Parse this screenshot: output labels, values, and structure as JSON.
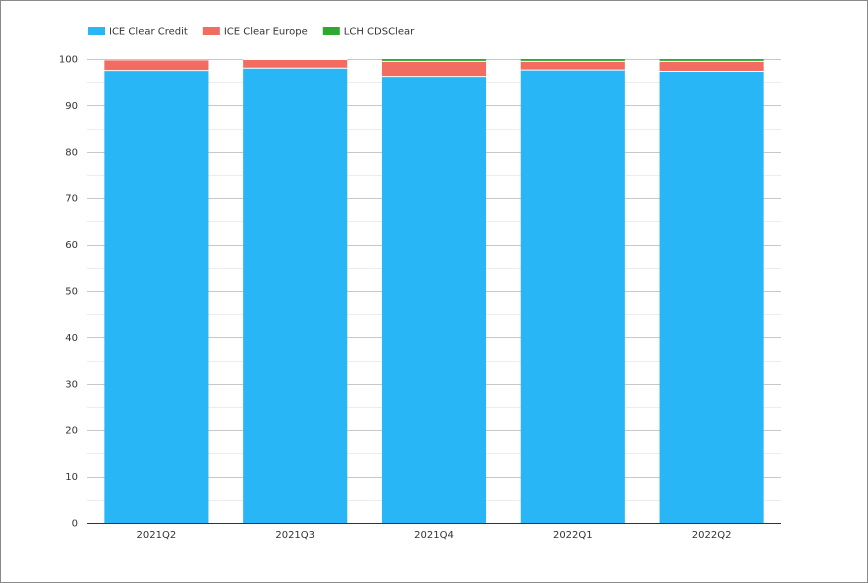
{
  "chart_data": {
    "type": "bar",
    "stacked": true,
    "categories": [
      "2021Q2",
      "2021Q3",
      "2021Q4",
      "2022Q1",
      "2022Q2"
    ],
    "series": [
      {
        "name": "ICE Clear Credit",
        "color": "#29b6f6",
        "values": [
          97.5,
          98.0,
          96.2,
          97.6,
          97.3
        ]
      },
      {
        "name": "ICE Clear Europe",
        "color": "#f26c62",
        "values": [
          2.3,
          1.9,
          3.3,
          1.9,
          2.2
        ]
      },
      {
        "name": "LCH CDSClear",
        "color": "#2ea82e",
        "values": [
          0.2,
          0.1,
          0.5,
          0.5,
          0.5
        ]
      }
    ],
    "ylim": [
      0,
      100
    ],
    "yticks": [
      0,
      10,
      20,
      30,
      40,
      50,
      60,
      70,
      80,
      90,
      100
    ],
    "grid": true,
    "legend_position": "top-left"
  }
}
